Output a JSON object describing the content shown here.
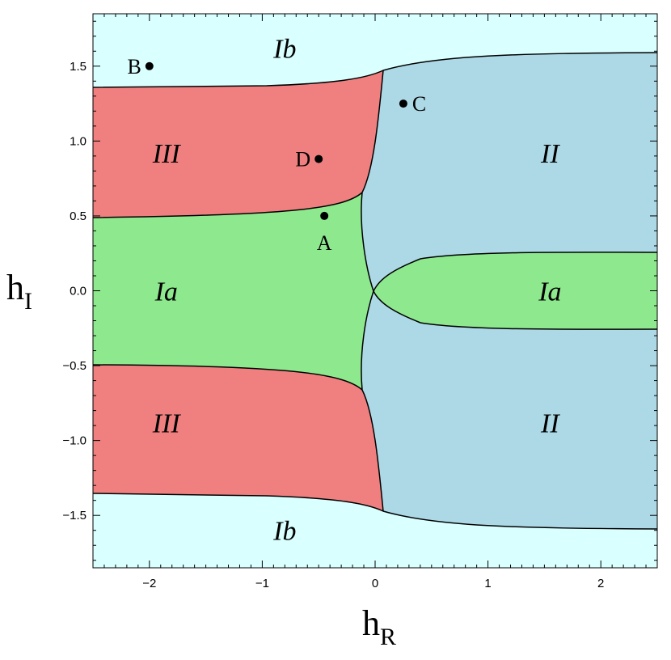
{
  "chart_data": {
    "type": "region-diagram",
    "xlabel": "h",
    "xlabel_sub": "R",
    "ylabel": "h",
    "ylabel_sub": "I",
    "xlim": [
      -2.5,
      2.5
    ],
    "ylim": [
      -1.85,
      1.85
    ],
    "x_ticks": [
      {
        "value": -2,
        "label": "−2"
      },
      {
        "value": -1,
        "label": "−1"
      },
      {
        "value": 0,
        "label": "0"
      },
      {
        "value": 1,
        "label": "1"
      },
      {
        "value": 2,
        "label": "2"
      }
    ],
    "y_ticks": [
      {
        "value": 1.5,
        "label": "1.5"
      },
      {
        "value": 1.0,
        "label": "1.0"
      },
      {
        "value": 0.5,
        "label": "0.5"
      },
      {
        "value": 0.0,
        "label": "0.0"
      },
      {
        "value": -0.5,
        "label": "−0.5"
      },
      {
        "value": -1.0,
        "label": "−1.0"
      },
      {
        "value": -1.5,
        "label": "−1.5"
      }
    ],
    "colors": {
      "Ia": "#8ee88e",
      "Ib": "#d9ffff",
      "II": "#add8e6",
      "III": "#f08080",
      "boundary": "#000000"
    },
    "regions": [
      {
        "name": "Ib",
        "label": "Ib",
        "x": -0.8,
        "y": 1.62
      },
      {
        "name": "III",
        "label": "III",
        "x": -1.85,
        "y": 0.92
      },
      {
        "name": "II",
        "label": "II",
        "x": 1.55,
        "y": 0.92
      },
      {
        "name": "Ia",
        "label": "Ia",
        "x": -1.85,
        "y": 0.0
      },
      {
        "name": "Ia",
        "label": "Ia",
        "x": 1.55,
        "y": 0.0
      },
      {
        "name": "III",
        "label": "III",
        "x": -1.85,
        "y": -0.88
      },
      {
        "name": "II",
        "label": "II",
        "x": 1.55,
        "y": -0.88
      },
      {
        "name": "Ib",
        "label": "Ib",
        "x": -0.8,
        "y": -1.6
      }
    ],
    "points": [
      {
        "label": "A",
        "x": -0.45,
        "y": 0.5,
        "label_pos": "below"
      },
      {
        "label": "B",
        "x": -2.0,
        "y": 1.5,
        "label_pos": "left"
      },
      {
        "label": "C",
        "x": 0.25,
        "y": 1.25,
        "label_pos": "right"
      },
      {
        "label": "D",
        "x": -0.5,
        "y": 0.88,
        "label_pos": "left"
      }
    ]
  }
}
